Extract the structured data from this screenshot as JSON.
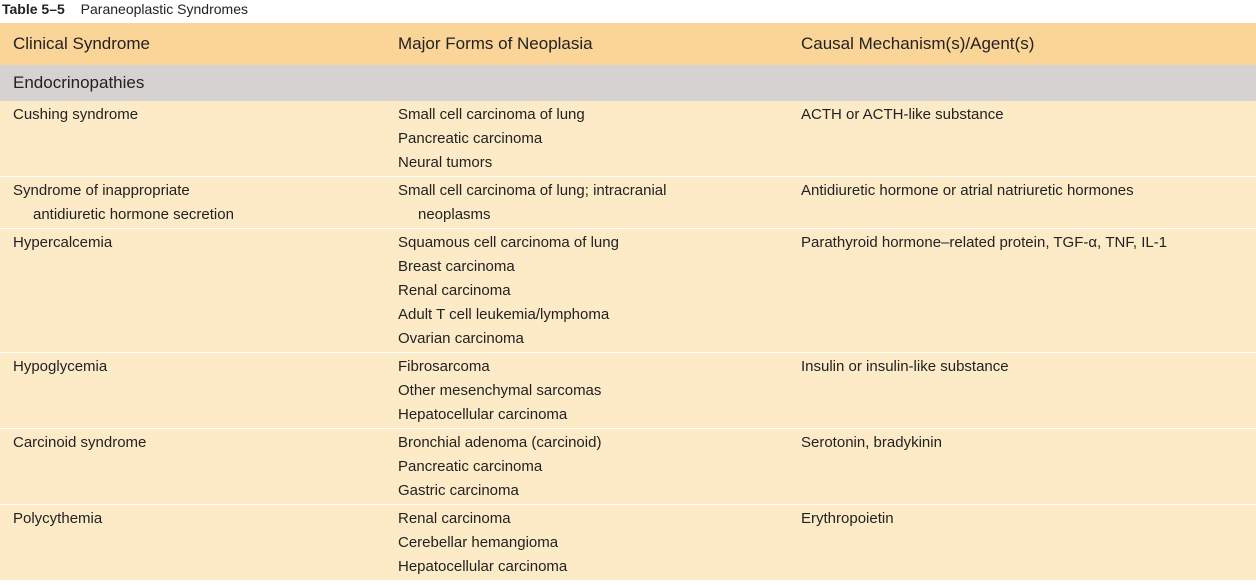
{
  "caption": {
    "number": "Table 5–5",
    "title": "Paraneoplastic Syndromes"
  },
  "table": {
    "headers": [
      "Clinical Syndrome",
      "Major Forms of Neoplasia",
      "Causal Mechanism(s)/Agent(s)"
    ],
    "section": "Endocrinopathies",
    "rows": [
      {
        "syndrome": [
          "Cushing syndrome"
        ],
        "neoplasia": [
          "Small cell carcinoma of lung",
          "Pancreatic carcinoma",
          "Neural tumors"
        ],
        "mechanism": "ACTH or ACTH-like substance"
      },
      {
        "syndrome": [
          "Syndrome of inappropriate",
          "antidiuretic hormone secretion"
        ],
        "neoplasia": [
          "Small cell carcinoma of lung; intracranial",
          "neoplasms"
        ],
        "mechanism": "Antidiuretic hormone or atrial natriuretic hormones"
      },
      {
        "syndrome": [
          "Hypercalcemia"
        ],
        "neoplasia": [
          "Squamous cell carcinoma of lung",
          "Breast carcinoma",
          "Renal carcinoma",
          "Adult T cell leukemia/lymphoma",
          "Ovarian carcinoma"
        ],
        "mechanism": "Parathyroid hormone–related protein, TGF-α, TNF, IL-1"
      },
      {
        "syndrome": [
          "Hypoglycemia"
        ],
        "neoplasia": [
          "Fibrosarcoma",
          "Other mesenchymal sarcomas",
          "Hepatocellular carcinoma"
        ],
        "mechanism": "Insulin or insulin-like substance"
      },
      {
        "syndrome": [
          "Carcinoid syndrome"
        ],
        "neoplasia": [
          "Bronchial adenoma (carcinoid)",
          "Pancreatic carcinoma",
          "Gastric carcinoma"
        ],
        "mechanism": "Serotonin, bradykinin"
      },
      {
        "syndrome": [
          "Polycythemia"
        ],
        "neoplasia": [
          "Renal carcinoma",
          "Cerebellar hemangioma",
          "Hepatocellular carcinoma"
        ],
        "mechanism": "Erythropoietin"
      }
    ]
  }
}
